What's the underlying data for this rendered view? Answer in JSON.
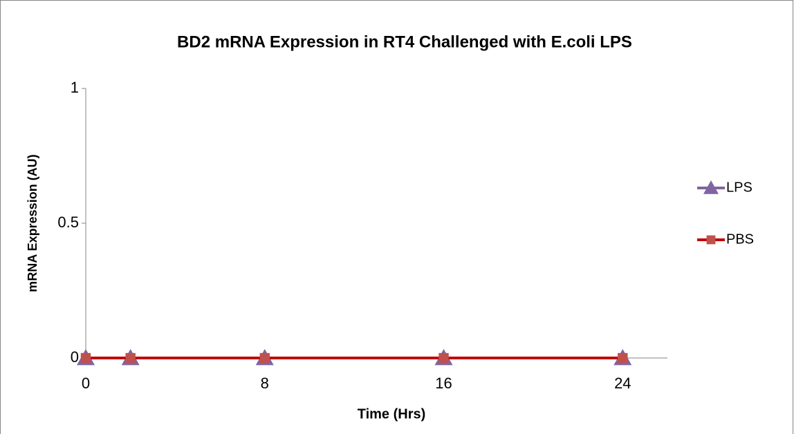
{
  "chart_data": {
    "type": "line",
    "title": "BD2 mRNA Expression in RT4 Challenged with E.coli LPS",
    "x_label": "Time (Hrs)",
    "y_label": "mRNA Expression (AU)",
    "x": [
      0,
      2,
      8,
      16,
      24
    ],
    "series": [
      {
        "name": "LPS",
        "color": "#8064a2",
        "marker": "triangle",
        "values": [
          0,
          0,
          0,
          0,
          0
        ]
      },
      {
        "name": "PBS",
        "color": "#c00000",
        "marker_color": "#c0504d",
        "marker": "square",
        "values": [
          0,
          0,
          0,
          0,
          0
        ]
      }
    ],
    "xlim": [
      0,
      26
    ],
    "xticks": [
      0,
      8,
      16,
      24
    ],
    "ylim": [
      0,
      1
    ],
    "yticks": [
      0,
      0.5,
      1
    ],
    "legend": "right",
    "grid": false
  }
}
